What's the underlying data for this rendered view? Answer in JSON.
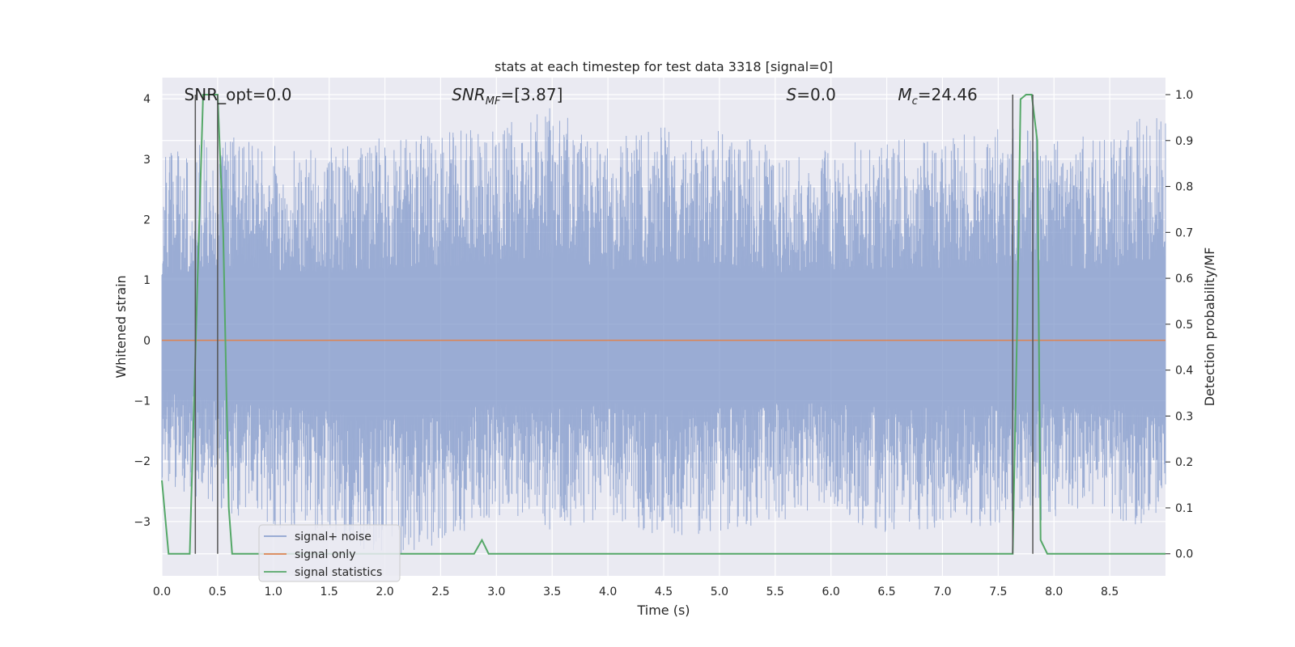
{
  "chart_data": {
    "type": "line",
    "title": "stats at each timestep for test data 3318 [signal=0]",
    "xlabel": "Time (s)",
    "ylabel_left": "Whitened strain",
    "ylabel_right": "Detection probability/MF",
    "xlim": [
      0,
      9
    ],
    "ylim_left": [
      -3.9,
      4.35
    ],
    "ylim_right": [
      -0.048,
      1.037
    ],
    "x_ticks": [
      0.0,
      0.5,
      1.0,
      1.5,
      2.0,
      2.5,
      3.0,
      3.5,
      4.0,
      4.5,
      5.0,
      5.5,
      6.0,
      6.5,
      7.0,
      7.5,
      8.0,
      8.5
    ],
    "x_tick_labels": [
      "0.0",
      "0.5",
      "1.0",
      "1.5",
      "2.0",
      "2.5",
      "3.0",
      "3.5",
      "4.0",
      "4.5",
      "5.0",
      "5.5",
      "6.0",
      "6.5",
      "7.0",
      "7.5",
      "8.0",
      "8.5"
    ],
    "y_left_ticks": [
      -3,
      -2,
      -1,
      0,
      1,
      2,
      3,
      4
    ],
    "y_left_tick_labels": [
      "−3",
      "−2",
      "−1",
      "0",
      "1",
      "2",
      "3",
      "4"
    ],
    "y_right_ticks": [
      0.0,
      0.1,
      0.2,
      0.3,
      0.4,
      0.5,
      0.6,
      0.7,
      0.8,
      0.9,
      1.0
    ],
    "y_right_tick_labels": [
      "0.0",
      "0.1",
      "0.2",
      "0.3",
      "0.4",
      "0.5",
      "0.6",
      "0.7",
      "0.8",
      "0.9",
      "1.0"
    ],
    "grid": true,
    "legend_position": "lower-left",
    "legend": [
      "signal+ noise",
      "signal only",
      "signal statistics"
    ],
    "annotations": [
      {
        "text": "SNR_opt=0.0",
        "x": 0.2
      },
      {
        "text": "SNR",
        "sub": "MF",
        "tail": "=[3.87]",
        "italic": true,
        "x": 2.6
      },
      {
        "text": "S",
        "tail": "=0.0",
        "italic": true,
        "x": 5.6
      },
      {
        "text": "M",
        "sub": "c",
        "tail": "=24.46",
        "italic": true,
        "x": 6.6
      }
    ],
    "noise_envelope": {
      "x": [
        0.0,
        0.5,
        1.0,
        1.5,
        2.0,
        2.5,
        3.0,
        3.5,
        4.0,
        4.5,
        5.0,
        5.5,
        6.0,
        6.5,
        7.0,
        7.5,
        8.0,
        8.5,
        9.0
      ],
      "upper": [
        3.1,
        3.4,
        3.3,
        3.2,
        3.4,
        3.5,
        3.6,
        3.9,
        3.3,
        3.6,
        3.5,
        3.2,
        3.3,
        3.3,
        3.4,
        3.5,
        3.5,
        3.3,
        4.0
      ],
      "lower": [
        -2.4,
        -2.8,
        -3.1,
        -3.3,
        -3.6,
        -3.4,
        -3.0,
        -3.2,
        -2.9,
        -3.3,
        -3.2,
        -3.0,
        -2.9,
        -3.2,
        -3.1,
        -3.1,
        -3.0,
        -3.0,
        -3.1
      ]
    },
    "series": [
      {
        "name": "signal+ noise",
        "color": "#7f97c9",
        "axis": "left"
      },
      {
        "name": "signal only",
        "color": "#dd8452",
        "axis": "left",
        "x": [
          0,
          9
        ],
        "y": [
          0,
          0
        ]
      },
      {
        "name": "signal statistics",
        "color": "#55a868",
        "axis": "right",
        "x": [
          0.0,
          0.06,
          0.18,
          0.25,
          0.32,
          0.37,
          0.4,
          0.5,
          0.55,
          0.6,
          0.63,
          0.7,
          2.5,
          2.8,
          2.87,
          2.93,
          3.5,
          7.5,
          7.63,
          7.67,
          7.7,
          7.75,
          7.8,
          7.85,
          7.88,
          7.94,
          8.5,
          9.0
        ],
        "y": [
          0.16,
          0.0,
          0.0,
          0.0,
          0.6,
          1.0,
          1.0,
          1.0,
          0.7,
          0.1,
          0.0,
          0.0,
          0.0,
          0.0,
          0.03,
          0.0,
          0.0,
          0.0,
          0.0,
          0.5,
          0.99,
          1.0,
          1.0,
          0.9,
          0.03,
          0.0,
          0.0,
          0.0
        ]
      }
    ],
    "vlines": {
      "color": "#555555",
      "x": [
        0.3,
        0.5,
        7.63,
        7.81
      ],
      "ymax_right": [
        1.0,
        1.0,
        1.0,
        1.0
      ]
    }
  }
}
